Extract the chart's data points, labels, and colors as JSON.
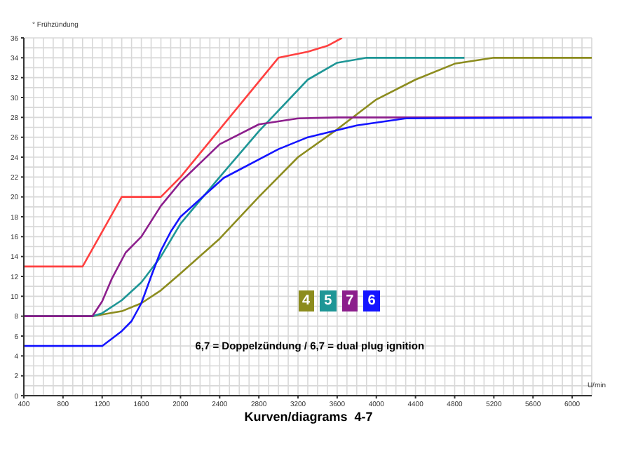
{
  "chart_data": {
    "type": "line",
    "title": "Kurven/diagrams  4-7",
    "xlabel": "U/min",
    "ylabel": "° Frühzündung",
    "annotations": [
      "6,7 = Doppelzündung / 6,7 = dual plug ignition"
    ],
    "xlim": [
      400,
      6200
    ],
    "xticks": [
      400,
      800,
      1200,
      1600,
      2000,
      2400,
      2800,
      3200,
      3600,
      4000,
      4400,
      4800,
      5200,
      5600,
      6000
    ],
    "ylim": [
      0,
      36
    ],
    "yticks": [
      0,
      2,
      4,
      6,
      8,
      10,
      12,
      14,
      16,
      18,
      20,
      22,
      24,
      26,
      28,
      30,
      32,
      34,
      36
    ],
    "grid": true,
    "legend": "center",
    "marker": "none",
    "line_style": "solid",
    "series": [
      {
        "color": "#ff4040",
        "x": [
          400,
          1000,
          1400,
          1800,
          2000,
          3000,
          3300,
          3500,
          3650
        ],
        "values": [
          13,
          13,
          20,
          20,
          22,
          34,
          34.6,
          35.2,
          36
        ]
      },
      {
        "name": "4",
        "color": "#8c8c1e",
        "x": [
          400,
          1100,
          1400,
          1600,
          1800,
          2000,
          2400,
          2800,
          3200,
          3600,
          4000,
          4400,
          4800,
          5200,
          6200
        ],
        "values": [
          8,
          8,
          8.5,
          9.3,
          10.6,
          12.3,
          15.8,
          20,
          24,
          26.8,
          29.8,
          31.8,
          33.4,
          34,
          34
        ]
      },
      {
        "name": "5",
        "color": "#1e9696",
        "x": [
          400,
          1100,
          1200,
          1400,
          1600,
          1800,
          2000,
          2400,
          2800,
          3300,
          3600,
          3900,
          4900
        ],
        "values": [
          8,
          8,
          8.3,
          9.6,
          11.4,
          14,
          17.3,
          22,
          26.6,
          31.8,
          33.5,
          34,
          34
        ]
      },
      {
        "name": "7",
        "color": "#8c1e8c",
        "x": [
          400,
          1100,
          1200,
          1300,
          1440,
          1600,
          1800,
          2000,
          2400,
          2800,
          3200,
          3600,
          6200
        ],
        "values": [
          8,
          8,
          9.5,
          11.8,
          14.4,
          16,
          19.1,
          21.5,
          25.3,
          27.3,
          27.9,
          28,
          28
        ]
      },
      {
        "name": "6",
        "color": "#1414ff",
        "x": [
          400,
          1200,
          1400,
          1500,
          1600,
          1700,
          1800,
          1900,
          2000,
          2440,
          3000,
          3300,
          3800,
          4300,
          6200
        ],
        "values": [
          5,
          5,
          6.5,
          7.5,
          9.3,
          12,
          14.6,
          16.5,
          18,
          21.9,
          24.8,
          26,
          27.2,
          27.9,
          28
        ]
      }
    ]
  }
}
